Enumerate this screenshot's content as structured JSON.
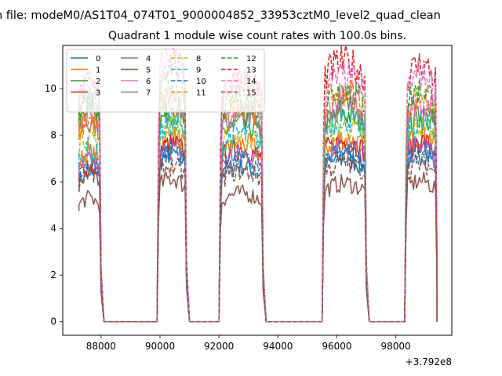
{
  "figure": {
    "suptitle": "n file: modeM0/AS1T04_074T01_9000004852_33953cztM0_level2_quad_clean",
    "title": "Quadrant 1 module wise count rates with 100.0s bins."
  },
  "chart_data": {
    "type": "line",
    "title": "Quadrant 1 module wise count rates with 100.0s bins.",
    "xlabel": "",
    "ylabel": "",
    "x_offset_label": "+3.792e8",
    "xlim": [
      86700,
      99900
    ],
    "ylim": [
      -0.58,
      11.85
    ],
    "xticks": [
      88000,
      90000,
      92000,
      94000,
      96000,
      98000
    ],
    "xtick_labels": [
      "88000",
      "90000",
      "92000",
      "94000",
      "96000",
      "98000"
    ],
    "yticks": [
      0,
      2,
      4,
      6,
      8,
      10
    ],
    "ytick_labels": [
      "0",
      "2",
      "4",
      "6",
      "8",
      "10"
    ],
    "grid": false,
    "legend": {
      "placement": "top-left",
      "columns": 4
    },
    "segments": [
      {
        "start": 87250,
        "end": 87950,
        "drop_to": 88100
      },
      {
        "start": 89950,
        "end": 90850,
        "drop_to": 91000
      },
      {
        "start": 92050,
        "end": 93450,
        "drop_to": 93600
      },
      {
        "start": 95550,
        "end": 96950,
        "drop_to": 97100
      },
      {
        "start": 98350,
        "end": 99350,
        "drop_to": 99400
      }
    ],
    "series": [
      {
        "name": "0",
        "color": "#1f77b4",
        "dash": "solid",
        "level": 6.6,
        "bumps": [
          6.0,
          6.8,
          6.3,
          6.6,
          6.8
        ]
      },
      {
        "name": "1",
        "color": "#ff7f0e",
        "dash": "solid",
        "level": 7.5,
        "bumps": [
          6.8,
          7.5,
          7.2,
          7.4,
          7.6
        ]
      },
      {
        "name": "2",
        "color": "#2ca02c",
        "dash": "solid",
        "level": 8.3,
        "bumps": [
          8.8,
          8.5,
          8.0,
          8.4,
          8.3
        ]
      },
      {
        "name": "3",
        "color": "#d62728",
        "dash": "solid",
        "level": 7.3,
        "bumps": [
          6.3,
          7.2,
          7.0,
          7.3,
          7.3
        ]
      },
      {
        "name": "4",
        "color": "#9467bd",
        "dash": "solid",
        "level": 7.1,
        "bumps": [
          6.5,
          7.0,
          6.8,
          7.1,
          7.1
        ]
      },
      {
        "name": "5",
        "color": "#8c564b",
        "dash": "solid",
        "level": 5.6,
        "bumps": [
          5.0,
          5.8,
          5.2,
          5.6,
          5.7
        ]
      },
      {
        "name": "6",
        "color": "#e377c2",
        "dash": "solid",
        "level": 8.8,
        "bumps": [
          8.5,
          9.0,
          8.4,
          9.0,
          8.9
        ]
      },
      {
        "name": "7",
        "color": "#7f7f7f",
        "dash": "solid",
        "level": 8.6,
        "bumps": [
          8.2,
          8.8,
          8.3,
          8.7,
          8.6
        ]
      },
      {
        "name": "8",
        "color": "#bcbd22",
        "dash": "dashed",
        "level": 7.8,
        "bumps": [
          7.6,
          8.0,
          7.6,
          7.9,
          7.9
        ]
      },
      {
        "name": "9",
        "color": "#17becf",
        "dash": "dashed",
        "level": 8.0,
        "bumps": [
          7.0,
          8.0,
          7.6,
          8.2,
          8.0
        ]
      },
      {
        "name": "10",
        "color": "#1f77b4",
        "dash": "dashed",
        "level": 6.8,
        "bumps": [
          6.2,
          6.9,
          6.5,
          6.8,
          6.9
        ]
      },
      {
        "name": "11",
        "color": "#ff7f0e",
        "dash": "dashed",
        "level": 9.0,
        "bumps": [
          8.2,
          9.2,
          8.8,
          9.3,
          9.1
        ]
      },
      {
        "name": "12",
        "color": "#2ca02c",
        "dash": "dashed",
        "level": 9.2,
        "bumps": [
          9.0,
          9.6,
          9.0,
          9.4,
          9.4
        ]
      },
      {
        "name": "13",
        "color": "#d62728",
        "dash": "dashed",
        "level": 10.2,
        "bumps": [
          9.5,
          10.5,
          9.8,
          10.5,
          10.4
        ]
      },
      {
        "name": "14",
        "color": "#e377c2",
        "dash": "dashed",
        "level": 9.8,
        "bumps": [
          9.6,
          10.6,
          9.7,
          9.9,
          10.0
        ]
      },
      {
        "name": "15",
        "color": "#8c564b",
        "dash": "dashed",
        "level": 6.3,
        "bumps": [
          6.0,
          6.3,
          6.1,
          6.4,
          6.4
        ]
      }
    ]
  }
}
